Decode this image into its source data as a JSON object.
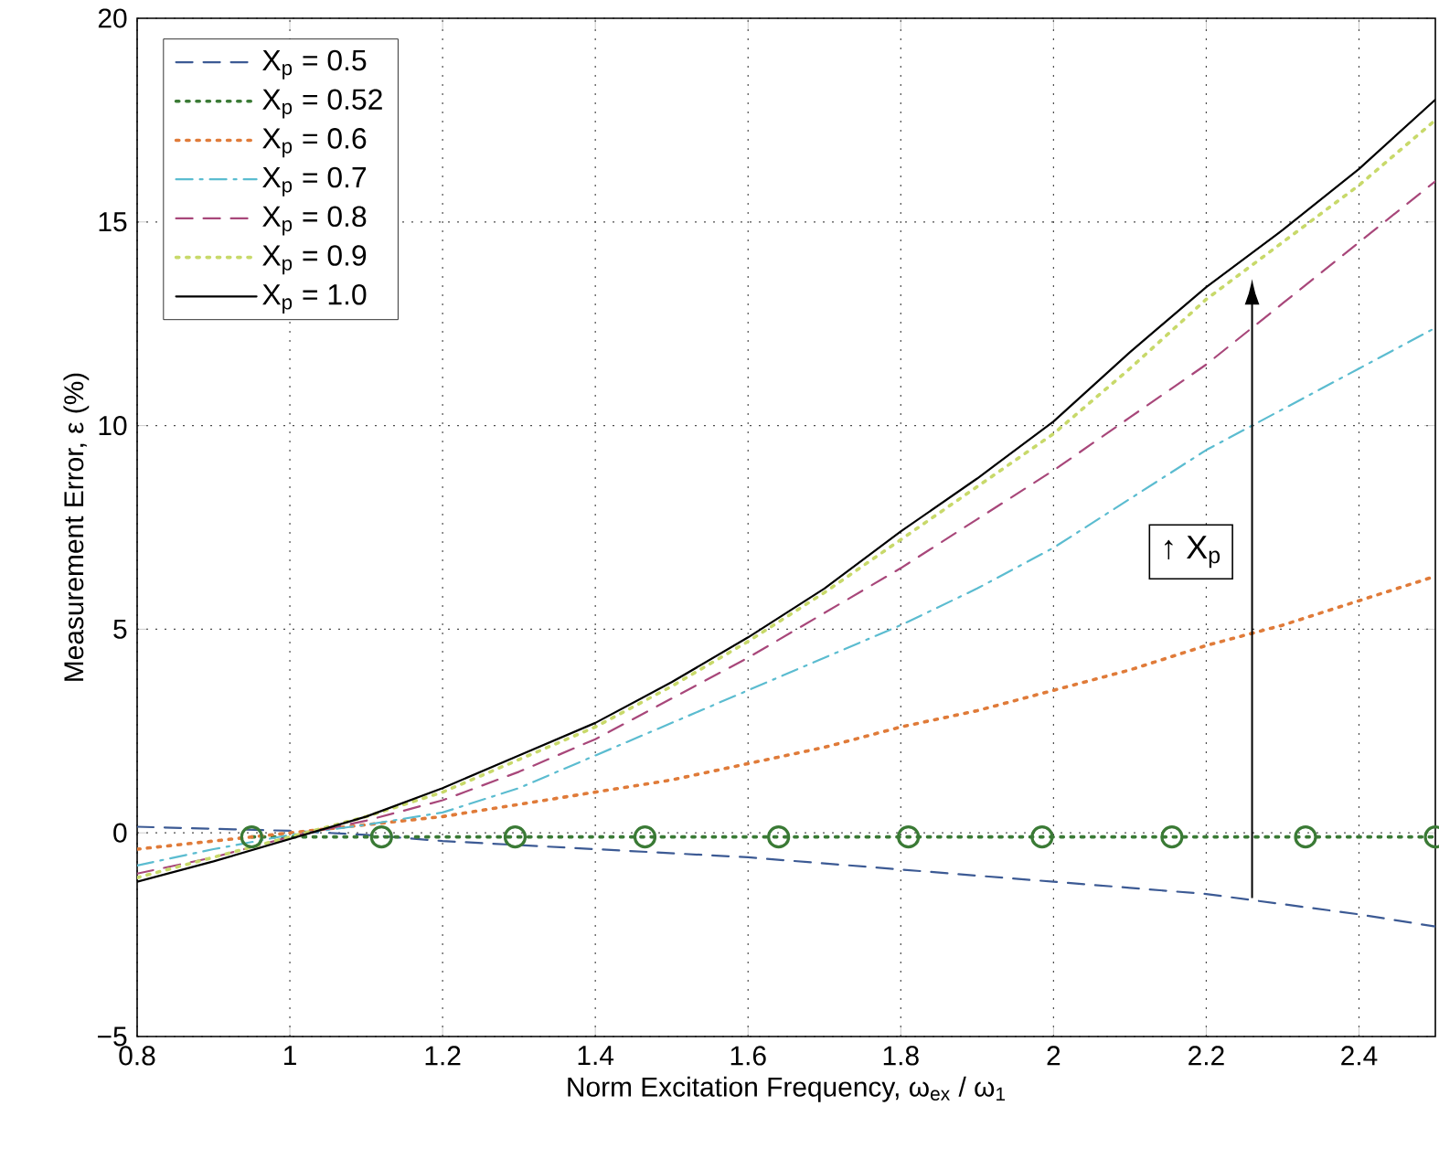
{
  "chart_data": {
    "type": "line",
    "xlabel": "Norm Excitation Frequency, ω$_{ex}$ / ω$_{1}$",
    "ylabel": "Measurement Error, ε (%)",
    "xlim": [
      0.8,
      2.5
    ],
    "ylim": [
      -5,
      20
    ],
    "xticks": [
      {
        "value": 0.8,
        "label": "0.8"
      },
      {
        "value": 1,
        "label": "1"
      },
      {
        "value": 1.2,
        "label": "1.2"
      },
      {
        "value": 1.4,
        "label": "1.4"
      },
      {
        "value": 1.6,
        "label": "1.6"
      },
      {
        "value": 1.8,
        "label": "1.8"
      },
      {
        "value": 2,
        "label": "2"
      },
      {
        "value": 2.2,
        "label": "2.2"
      },
      {
        "value": 2.4,
        "label": "2.4"
      }
    ],
    "yticks": [
      {
        "value": -5,
        "label": "−5"
      },
      {
        "value": 0,
        "label": "0"
      },
      {
        "value": 5,
        "label": "5"
      },
      {
        "value": 10,
        "label": "10"
      },
      {
        "value": 15,
        "label": "15"
      },
      {
        "value": 20,
        "label": "20"
      }
    ],
    "grid": true,
    "legend": "top left",
    "annotations": [
      "↑ X$_{p}$"
    ],
    "x": [
      0.8,
      0.9,
      1.0,
      1.1,
      1.2,
      1.3,
      1.4,
      1.5,
      1.6,
      1.7,
      1.8,
      1.9,
      2.0,
      2.1,
      2.2,
      2.3,
      2.4,
      2.5
    ],
    "series": [
      {
        "name": "X$_{p}$ = 0.5",
        "color": "#3c5a94",
        "line_style": "dashed",
        "marker": "none",
        "values": [
          0.15,
          0.1,
          0.05,
          -0.05,
          -0.2,
          -0.3,
          -0.4,
          -0.5,
          -0.6,
          -0.75,
          -0.9,
          -1.05,
          -1.2,
          -1.35,
          -1.5,
          -1.75,
          -2.0,
          -2.3
        ]
      },
      {
        "name": "X$_{p}$ = 0.52",
        "color": "#3a7a35",
        "line_style": "dotted",
        "marker": "circle",
        "x": [
          0.95,
          1.12,
          1.295,
          1.465,
          1.64,
          1.81,
          1.985,
          2.155,
          2.33,
          2.5
        ],
        "values": [
          -0.1,
          -0.1,
          -0.1,
          -0.1,
          -0.1,
          -0.1,
          -0.1,
          -0.1,
          -0.1,
          -0.1
        ]
      },
      {
        "name": "X$_{p}$ = 0.6",
        "color": "#e07b39",
        "line_style": "dotted",
        "marker": "none",
        "values": [
          -0.4,
          -0.2,
          0,
          0.2,
          0.4,
          0.7,
          1.0,
          1.3,
          1.7,
          2.1,
          2.6,
          3.0,
          3.5,
          4.0,
          4.6,
          5.1,
          5.7,
          6.3
        ]
      },
      {
        "name": "X$_{p}$ = 0.7",
        "color": "#5bbcd0",
        "line_style": "dashdot",
        "marker": "none",
        "values": [
          -0.8,
          -0.4,
          -0.05,
          0.2,
          0.5,
          1.1,
          1.9,
          2.7,
          3.5,
          4.3,
          5.1,
          6.0,
          7.0,
          8.2,
          9.4,
          10.4,
          11.4,
          12.4
        ]
      },
      {
        "name": "X$_{p}$ = 0.8",
        "color": "#a8477a",
        "line_style": "dashed",
        "marker": "none",
        "values": [
          -1.0,
          -0.6,
          -0.1,
          0.3,
          0.8,
          1.5,
          2.3,
          3.3,
          4.3,
          5.4,
          6.5,
          7.7,
          8.9,
          10.2,
          11.5,
          13.0,
          14.5,
          16.0
        ]
      },
      {
        "name": "X$_{p}$ = 0.9",
        "color": "#c8d96a",
        "line_style": "dotted",
        "marker": "none",
        "values": [
          -1.1,
          -0.6,
          -0.1,
          0.4,
          1.0,
          1.8,
          2.6,
          3.6,
          4.7,
          5.9,
          7.2,
          8.5,
          9.8,
          11.4,
          13.1,
          14.5,
          15.9,
          17.5
        ]
      },
      {
        "name": "X$_{p}$ = 1.0",
        "color": "#000000",
        "line_style": "solid",
        "marker": "none",
        "values": [
          -1.2,
          -0.7,
          -0.15,
          0.4,
          1.1,
          1.9,
          2.7,
          3.7,
          4.8,
          6.0,
          7.4,
          8.7,
          10.1,
          11.8,
          13.4,
          14.8,
          16.3,
          18.0
        ]
      }
    ]
  }
}
